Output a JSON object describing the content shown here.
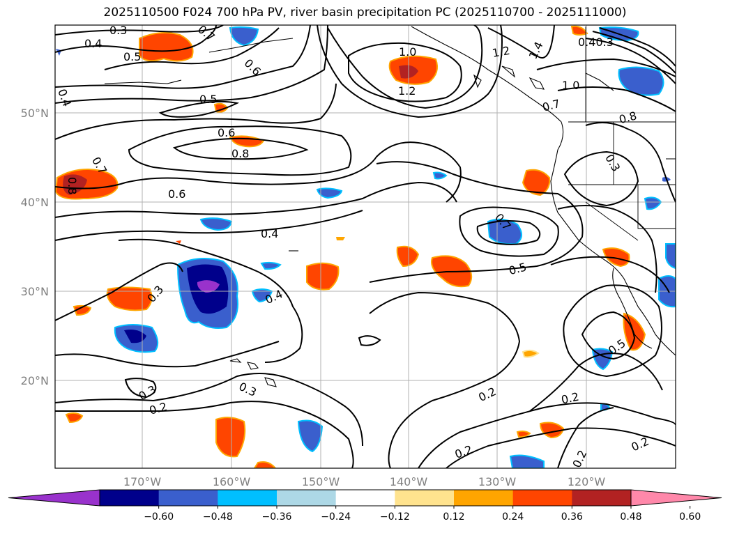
{
  "title": "2025110500 F024 700 hPa PV, river basin precipitation PC (2025110700 - 2025111000)",
  "lat_labels": [
    "50°N",
    "40°N",
    "30°N",
    "20°N"
  ],
  "lon_labels": [
    "170°W",
    "160°W",
    "150°W",
    "140°W",
    "130°W",
    "120°W"
  ],
  "contour_labels": [
    "0.3",
    "0.4",
    "0.5",
    "0.4",
    "0.7",
    "0.6",
    "1.0",
    "1.2",
    "1.2",
    "1.4",
    "0.40.3",
    "0.5",
    "0.6",
    "0.8",
    "0.8",
    "0.7",
    "1.0",
    "0.8",
    "0.6",
    "0.7",
    "0.3",
    "0.4",
    "0.3",
    "0.4",
    "0.7",
    "0.5",
    "0.3",
    "0.2",
    "0.3",
    "0.2",
    "0.2",
    "0.2",
    "0.2",
    "0.5",
    "0.2"
  ],
  "colorbar": {
    "tick_labels": [
      "−0.60",
      "−0.48",
      "−0.36",
      "−0.24",
      "−0.12",
      "0.12",
      "0.24",
      "0.36",
      "0.48",
      "0.60"
    ],
    "colors": [
      "#9932cc",
      "#00008b",
      "#3a5fcd",
      "#00bfff",
      "#add8e6",
      "#ffffff",
      "#ffe38e",
      "#ffa500",
      "#ff4500",
      "#b22222",
      "#ff88aa"
    ]
  },
  "chart_data": {
    "type": "contour-map",
    "title": "2025110500 F024 700 hPa PV, river basin precipitation PC (2025110700 - 2025111000)",
    "region": {
      "lon_range": [
        -180,
        -110
      ],
      "lat_range": [
        10,
        60
      ]
    },
    "contour_field": "700 hPa PV",
    "contour_levels": [
      0.2,
      0.3,
      0.4,
      0.5,
      0.6,
      0.7,
      0.8,
      1.0,
      1.2,
      1.4
    ],
    "shaded_field": "river basin precipitation PC",
    "shading_levels": [
      -0.6,
      -0.48,
      -0.36,
      -0.24,
      -0.12,
      0.12,
      0.24,
      0.36,
      0.48,
      0.6
    ],
    "colorbar_extend": "both"
  }
}
